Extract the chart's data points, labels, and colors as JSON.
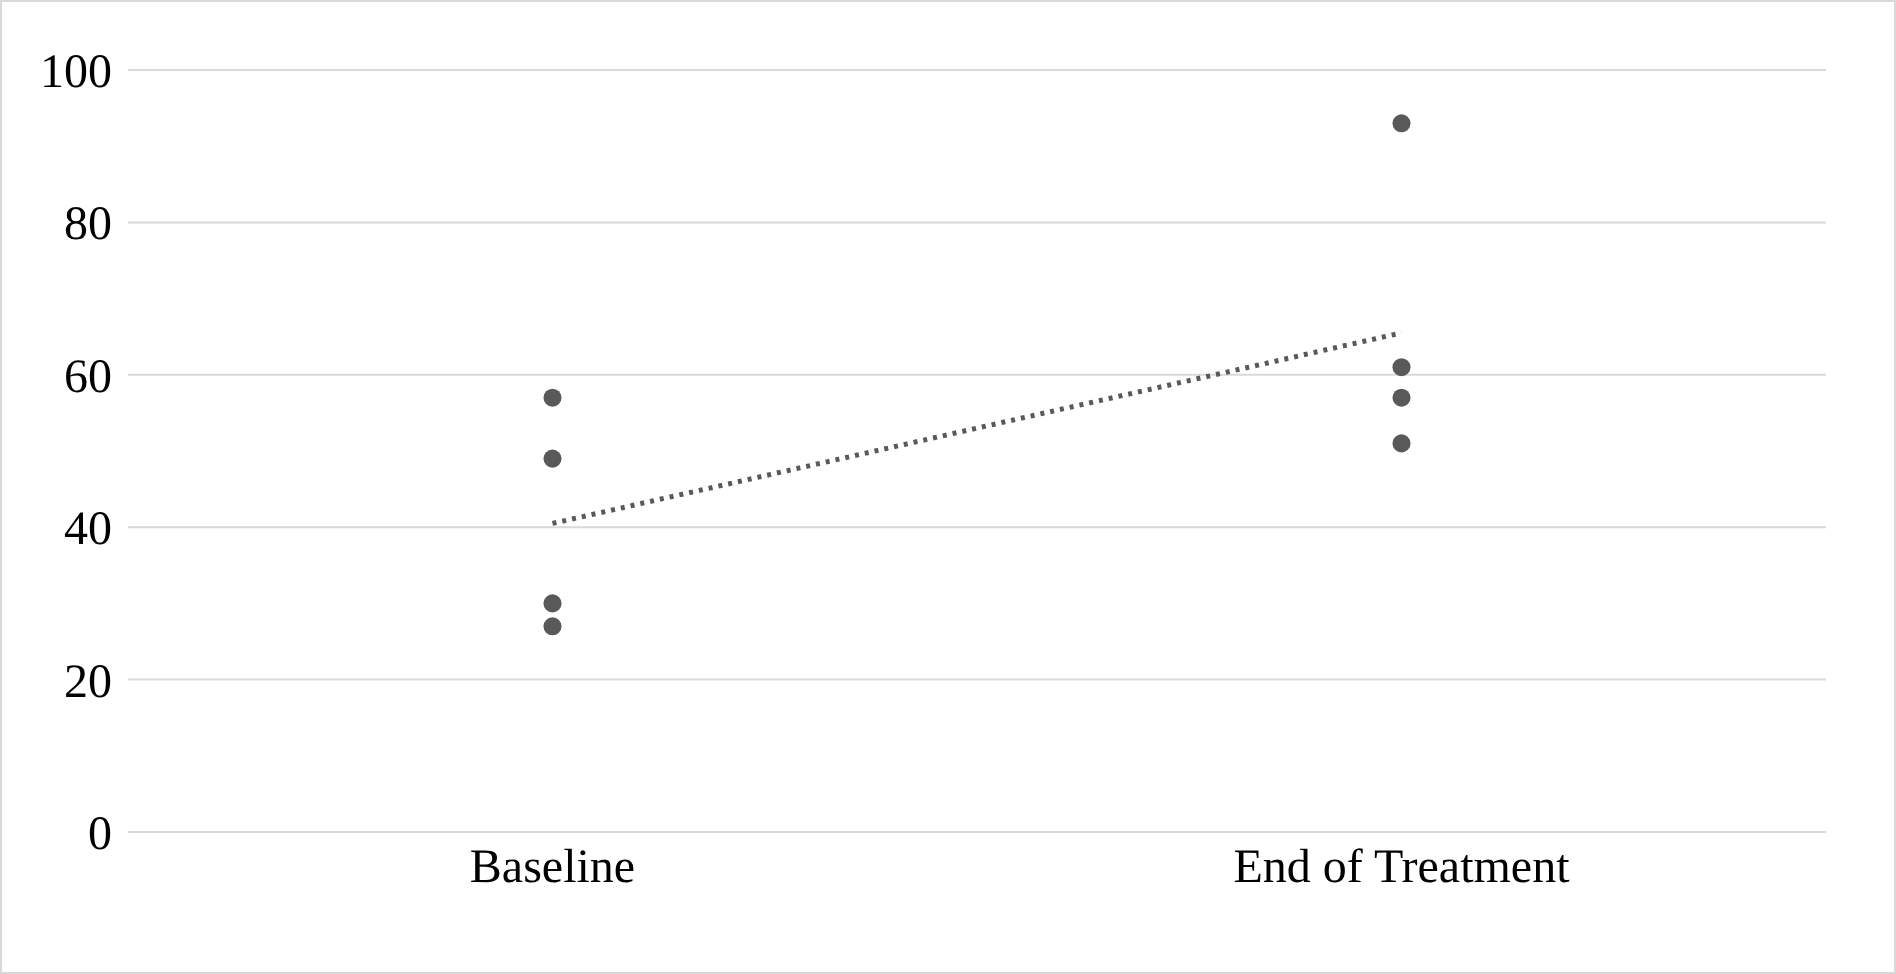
{
  "chart_data": {
    "type": "scatter",
    "categories": [
      "Baseline",
      "End of Treatment"
    ],
    "series": [
      {
        "color": "#595959",
        "x": [
          "Baseline",
          "Baseline",
          "Baseline",
          "Baseline",
          "End of Treatment",
          "End of Treatment",
          "End of Treatment",
          "End of Treatment"
        ],
        "values": [
          57,
          49,
          30,
          27,
          93,
          61,
          57,
          51
        ]
      },
      {
        "type": "line",
        "color": "#595959",
        "line_style": "dotted",
        "marker": "none",
        "x": [
          "Baseline",
          "End of Treatment"
        ],
        "values": [
          40.5,
          65.5
        ]
      }
    ],
    "ylim": [
      0,
      100
    ],
    "yticks": [
      0,
      20,
      40,
      60,
      80,
      100
    ],
    "grid": "y",
    "marker": "circle"
  }
}
